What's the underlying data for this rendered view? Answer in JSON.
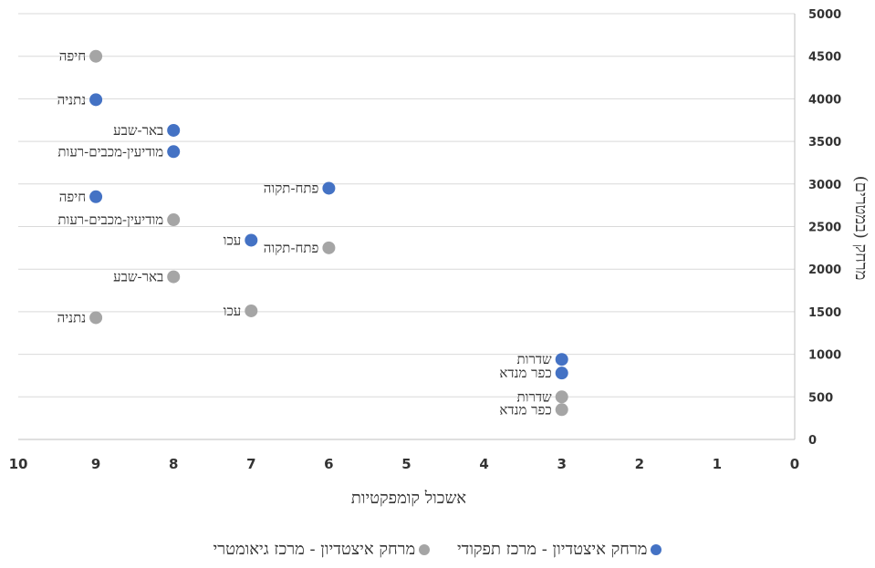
{
  "chart_data": {
    "type": "scatter",
    "xlabel": "אשכול קומפקטיות",
    "ylabel": "מרחק (במטרים)",
    "x_ticks": [
      "10",
      "9",
      "8",
      "7",
      "6",
      "5",
      "4",
      "3",
      "2",
      "1",
      "0"
    ],
    "y_ticks": [
      "0",
      "500",
      "1000",
      "1500",
      "2000",
      "2500",
      "3000",
      "3500",
      "4000",
      "4500",
      "5000"
    ],
    "xlim": [
      0,
      10
    ],
    "ylim": [
      0,
      5000
    ],
    "x_reversed": true,
    "grid": true,
    "legend_position": "bottom",
    "series": [
      {
        "name": "מרחק איצטדיון - מרכז גיאומטרי",
        "color": "#a5a5a5",
        "points": [
          {
            "x": 9,
            "y": 4500,
            "label": "חיפה"
          },
          {
            "x": 8,
            "y": 2580,
            "label": "מודיעין-מכבים-רעות"
          },
          {
            "x": 6,
            "y": 2250,
            "label": "פתח-תקוה"
          },
          {
            "x": 8,
            "y": 1910,
            "label": "באר-שבע"
          },
          {
            "x": 7,
            "y": 1510,
            "label": "עכו"
          },
          {
            "x": 9,
            "y": 1430,
            "label": "נתניה"
          },
          {
            "x": 3,
            "y": 500,
            "label": "שדרות"
          },
          {
            "x": 3,
            "y": 350,
            "label": "כפר מנדא"
          }
        ]
      },
      {
        "name": "מרחק איצטדיון - מרכז תפקודי",
        "color": "#4472c4",
        "points": [
          {
            "x": 9,
            "y": 3990,
            "label": "נתניה"
          },
          {
            "x": 8,
            "y": 3630,
            "label": "באר-שבע"
          },
          {
            "x": 8,
            "y": 3380,
            "label": "מודיעין-מכבים-רעות"
          },
          {
            "x": 6,
            "y": 2950,
            "label": "פתח-תקוה"
          },
          {
            "x": 9,
            "y": 2850,
            "label": "חיפה"
          },
          {
            "x": 7,
            "y": 2340,
            "label": "עכו"
          },
          {
            "x": 3,
            "y": 940,
            "label": "שדרות"
          },
          {
            "x": 3,
            "y": 780,
            "label": "כפר מנדא"
          }
        ]
      }
    ]
  }
}
